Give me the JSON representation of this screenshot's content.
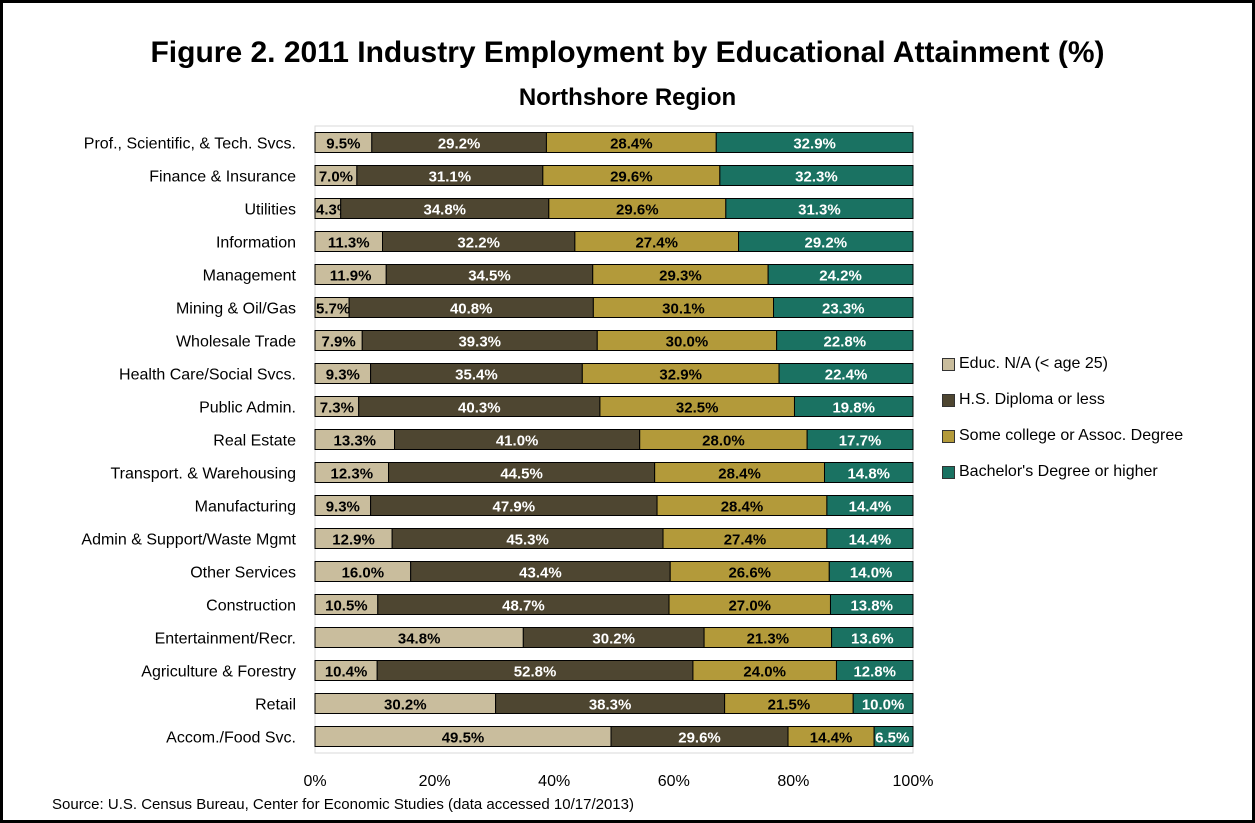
{
  "title": "Figure 2.  2011 Industry Employment by Educational Attainment (%)",
  "subtitle": "Northshore Region",
  "source": "Source: U.S. Census Bureau, Center for Economic Studies (data accessed 10/17/2013)",
  "colors": {
    "educ_na": "#c9bd9d",
    "hs": "#4e4631",
    "some_college": "#b39a3a",
    "bachelor": "#1a7262"
  },
  "chart_data": {
    "type": "bar",
    "orientation": "horizontal",
    "stacked": "percent",
    "categories": [
      "Prof., Scientific, & Tech.  Svcs.",
      "Finance & Insurance",
      "Utilities",
      "Information",
      "Management",
      "Mining & Oil/Gas",
      "Wholesale Trade",
      "Health Care/Social Svcs.",
      "Public Admin.",
      "Real Estate",
      "Transport. & Warehousing",
      "Manufacturing",
      "Admin & Support/Waste Mgmt",
      "Other Services",
      "Construction",
      "Entertainment/Recr.",
      "Agriculture & Forestry",
      "Retail",
      "Accom./Food Svc."
    ],
    "series": [
      {
        "name": "Educ. N/A (< age 25)",
        "values": [
          9.5,
          7.0,
          4.3,
          11.3,
          11.9,
          5.7,
          7.9,
          9.3,
          7.3,
          13.3,
          12.3,
          9.3,
          12.9,
          16.0,
          10.5,
          34.8,
          10.4,
          30.2,
          49.5
        ]
      },
      {
        "name": "H.S. Diploma or less",
        "values": [
          29.2,
          31.1,
          34.8,
          32.2,
          34.5,
          40.8,
          39.3,
          35.4,
          40.3,
          41.0,
          44.5,
          47.9,
          45.3,
          43.4,
          48.7,
          30.2,
          52.8,
          38.3,
          29.6
        ]
      },
      {
        "name": "Some college or Assoc. Degree",
        "values": [
          28.4,
          29.6,
          29.6,
          27.4,
          29.3,
          30.1,
          30.0,
          32.9,
          32.5,
          28.0,
          28.4,
          28.4,
          27.4,
          26.6,
          27.0,
          21.3,
          24.0,
          21.5,
          14.4
        ]
      },
      {
        "name": "Bachelor's Degree or higher",
        "values": [
          32.9,
          32.3,
          31.3,
          29.2,
          24.2,
          23.3,
          22.8,
          22.4,
          19.8,
          17.7,
          14.8,
          14.4,
          14.4,
          14.0,
          13.8,
          13.6,
          12.8,
          10.0,
          6.5
        ]
      }
    ],
    "x_ticks": [
      "0%",
      "20%",
      "40%",
      "60%",
      "80%",
      "100%"
    ],
    "xlim": [
      0,
      100
    ],
    "grid": false,
    "legend_position": "right"
  }
}
